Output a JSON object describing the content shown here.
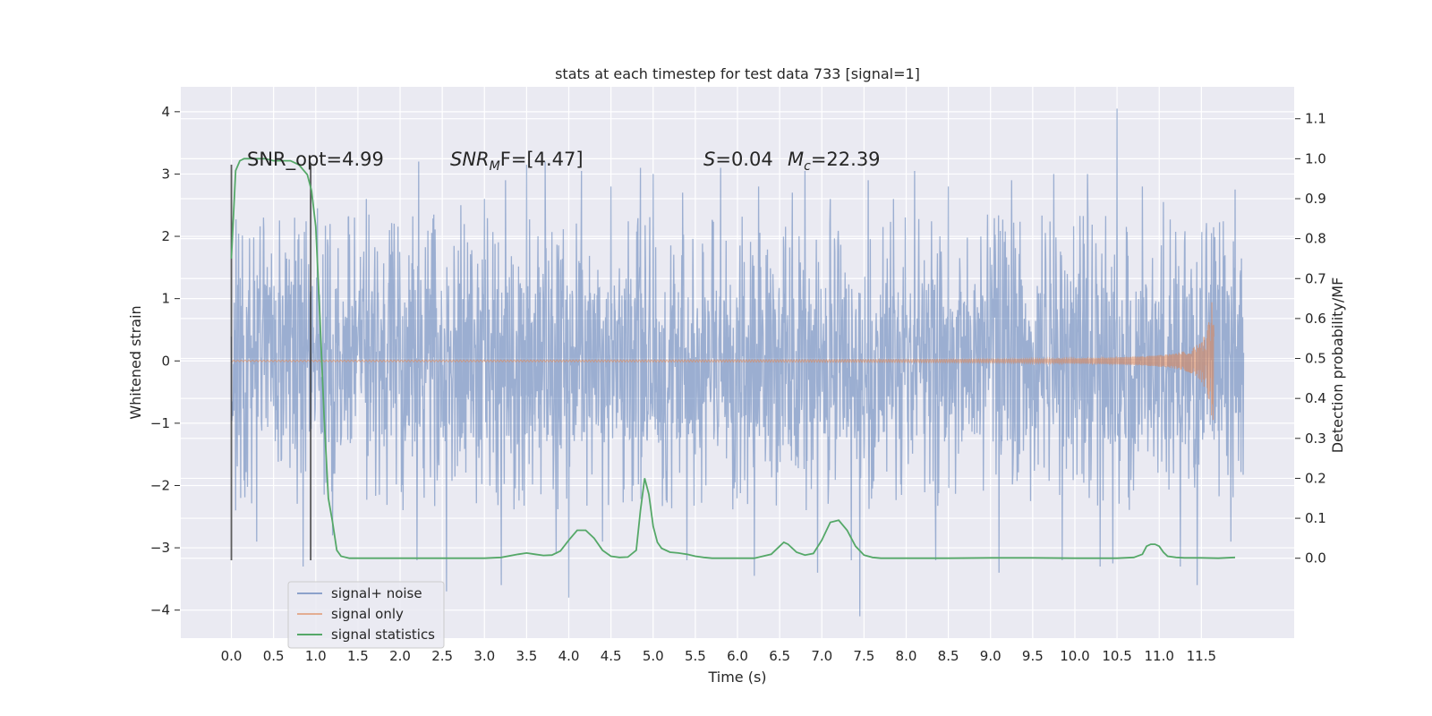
{
  "chart_data": {
    "type": "line",
    "title": "stats at each timestep for test data 733 [signal=1]",
    "xlabel": "Time (s)",
    "ylabel_left": "Whitened strain",
    "ylabel_right": "Detection probability/MF",
    "xlim": [
      -0.6,
      12.6
    ],
    "ylim_left": [
      -4.45,
      4.4
    ],
    "ylim_right": [
      -0.2,
      1.18
    ],
    "x_ticks": [
      0.0,
      0.5,
      1.0,
      1.5,
      2.0,
      2.5,
      3.0,
      3.5,
      4.0,
      4.5,
      5.0,
      5.5,
      6.0,
      6.5,
      7.0,
      7.5,
      8.0,
      8.5,
      9.0,
      9.5,
      10.0,
      10.5,
      11.0,
      11.5
    ],
    "x_tick_labels": [
      "0.0",
      "0.5",
      "1.0",
      "1.5",
      "2.0",
      "2.5",
      "3.0",
      "3.5",
      "4.0",
      "4.5",
      "5.0",
      "5.5",
      "6.0",
      "6.5",
      "7.0",
      "7.5",
      "8.0",
      "8.5",
      "9.0",
      "9.5",
      "10.0",
      "10.5",
      "11.0",
      "11.5"
    ],
    "y_left_ticks": [
      4,
      3,
      2,
      1,
      0,
      -1,
      -2,
      -3,
      -4
    ],
    "y_left_tick_labels": [
      "4",
      "3",
      "2",
      "1",
      "0",
      "−1",
      "−2",
      "−3",
      "−4"
    ],
    "y_right_ticks": [
      1.1,
      1.0,
      0.9,
      0.8,
      0.7,
      0.6,
      0.5,
      0.4,
      0.3,
      0.2,
      0.1,
      0.0
    ],
    "y_right_tick_labels": [
      "1.1",
      "1.0",
      "0.9",
      "0.8",
      "0.7",
      "0.6",
      "0.5",
      "0.4",
      "0.3",
      "0.2",
      "0.1",
      "0.0"
    ],
    "annotations": {
      "snr_opt": "SNR_opt=4.99",
      "snr_mf_label": "SNR",
      "snr_mf_sub": "M",
      "snr_mf_value": "F=[4.47]",
      "s_label": "S",
      "s_value": "=0.04",
      "mc_label": "M",
      "mc_sub": "c",
      "mc_value": "=22.39"
    },
    "markers": {
      "x": [
        0.0,
        0.94
      ],
      "y_range": [
        -3.2,
        3.15
      ]
    },
    "series": [
      {
        "name": "signal+ noise",
        "color": "#4c72b0",
        "axis": "left",
        "x_range": [
          0.0,
          12.0
        ],
        "sample_step": 0.005,
        "band": [
          -1.3,
          1.25
        ],
        "peaks": [
          [
            0.3,
            2.4
          ],
          [
            0.75,
            2.3
          ],
          [
            1.02,
            2.45
          ],
          [
            1.6,
            2.6
          ],
          [
            2.22,
            3.2
          ],
          [
            2.72,
            2.5
          ],
          [
            3.0,
            2.6
          ],
          [
            3.25,
            2.9
          ],
          [
            3.5,
            3.15
          ],
          [
            3.72,
            3.2
          ],
          [
            4.15,
            3.05
          ],
          [
            4.5,
            2.8
          ],
          [
            4.85,
            3.1
          ],
          [
            5.0,
            3.0
          ],
          [
            5.35,
            2.7
          ],
          [
            5.8,
            3.1
          ],
          [
            6.25,
            2.8
          ],
          [
            6.65,
            2.7
          ],
          [
            6.8,
            3.05
          ],
          [
            7.1,
            2.6
          ],
          [
            7.55,
            2.9
          ],
          [
            7.85,
            2.6
          ],
          [
            8.1,
            3.05
          ],
          [
            8.5,
            2.8
          ],
          [
            9.25,
            2.9
          ],
          [
            9.75,
            3.0
          ],
          [
            10.15,
            3.0
          ],
          [
            10.5,
            4.05
          ],
          [
            10.8,
            2.8
          ],
          [
            11.05,
            2.55
          ],
          [
            11.45,
            3.4
          ],
          [
            11.9,
            2.75
          ]
        ],
        "troughs": [
          [
            0.05,
            -2.4
          ],
          [
            0.3,
            -2.9
          ],
          [
            0.85,
            -3.3
          ],
          [
            1.2,
            -2.8
          ],
          [
            2.2,
            -3.2
          ],
          [
            2.55,
            -3.7
          ],
          [
            3.2,
            -3.6
          ],
          [
            3.85,
            -3.1
          ],
          [
            4.0,
            -3.8
          ],
          [
            4.4,
            -2.9
          ],
          [
            5.4,
            -3.2
          ],
          [
            6.2,
            -3.45
          ],
          [
            6.95,
            -3.4
          ],
          [
            7.35,
            -3.2
          ],
          [
            7.45,
            -4.1
          ],
          [
            8.35,
            -3.2
          ],
          [
            9.1,
            -3.4
          ],
          [
            9.85,
            -3.2
          ],
          [
            10.3,
            -3.3
          ],
          [
            10.45,
            -3.25
          ],
          [
            11.25,
            -3.3
          ],
          [
            11.45,
            -3.6
          ],
          [
            11.85,
            -2.9
          ]
        ]
      },
      {
        "name": "signal only",
        "color": "#dd8452",
        "axis": "left",
        "x_range": [
          0.0,
          11.65
        ],
        "chirp_start_amp": 0.005,
        "chirp_end_amp": 0.95,
        "chirp_peak_time": 11.65
      },
      {
        "name": "signal statistics",
        "color": "#55a868",
        "axis": "right",
        "x": [
          0.0,
          0.05,
          0.1,
          0.15,
          0.2,
          0.3,
          0.4,
          0.5,
          0.6,
          0.7,
          0.8,
          0.9,
          0.95,
          1.0,
          1.05,
          1.1,
          1.15,
          1.2,
          1.25,
          1.3,
          1.4,
          1.5,
          2.0,
          2.5,
          3.0,
          3.2,
          3.4,
          3.5,
          3.6,
          3.7,
          3.8,
          3.9,
          4.0,
          4.1,
          4.2,
          4.3,
          4.4,
          4.5,
          4.6,
          4.7,
          4.8,
          4.85,
          4.9,
          4.95,
          5.0,
          5.05,
          5.1,
          5.2,
          5.3,
          5.4,
          5.5,
          5.6,
          5.7,
          6.0,
          6.2,
          6.4,
          6.5,
          6.55,
          6.6,
          6.7,
          6.8,
          6.9,
          7.0,
          7.1,
          7.2,
          7.3,
          7.4,
          7.5,
          7.6,
          7.7,
          8.0,
          8.5,
          9.0,
          9.5,
          10.0,
          10.5,
          10.7,
          10.8,
          10.85,
          10.9,
          10.95,
          11.0,
          11.05,
          11.1,
          11.2,
          11.3,
          11.5,
          11.7,
          11.9
        ],
        "y": [
          0.75,
          0.97,
          0.995,
          1.0,
          1.0,
          1.0,
          1.0,
          0.995,
          0.995,
          0.995,
          0.985,
          0.96,
          0.92,
          0.83,
          0.6,
          0.35,
          0.15,
          0.09,
          0.02,
          0.005,
          0.0,
          0.0,
          0.0,
          0.0,
          0.0,
          0.002,
          0.01,
          0.013,
          0.01,
          0.007,
          0.008,
          0.018,
          0.045,
          0.07,
          0.07,
          0.05,
          0.02,
          0.005,
          0.002,
          0.003,
          0.02,
          0.12,
          0.2,
          0.16,
          0.08,
          0.04,
          0.025,
          0.015,
          0.013,
          0.01,
          0.005,
          0.002,
          0.0,
          0.0,
          0.0,
          0.01,
          0.03,
          0.04,
          0.035,
          0.015,
          0.008,
          0.012,
          0.045,
          0.09,
          0.095,
          0.07,
          0.03,
          0.008,
          0.002,
          0.0,
          0.0,
          0.0,
          0.001,
          0.001,
          0.0,
          0.0,
          0.002,
          0.01,
          0.03,
          0.035,
          0.035,
          0.03,
          0.015,
          0.005,
          0.002,
          0.001,
          0.001,
          0.0,
          0.002
        ]
      }
    ],
    "legend_placement": "lower-left"
  }
}
